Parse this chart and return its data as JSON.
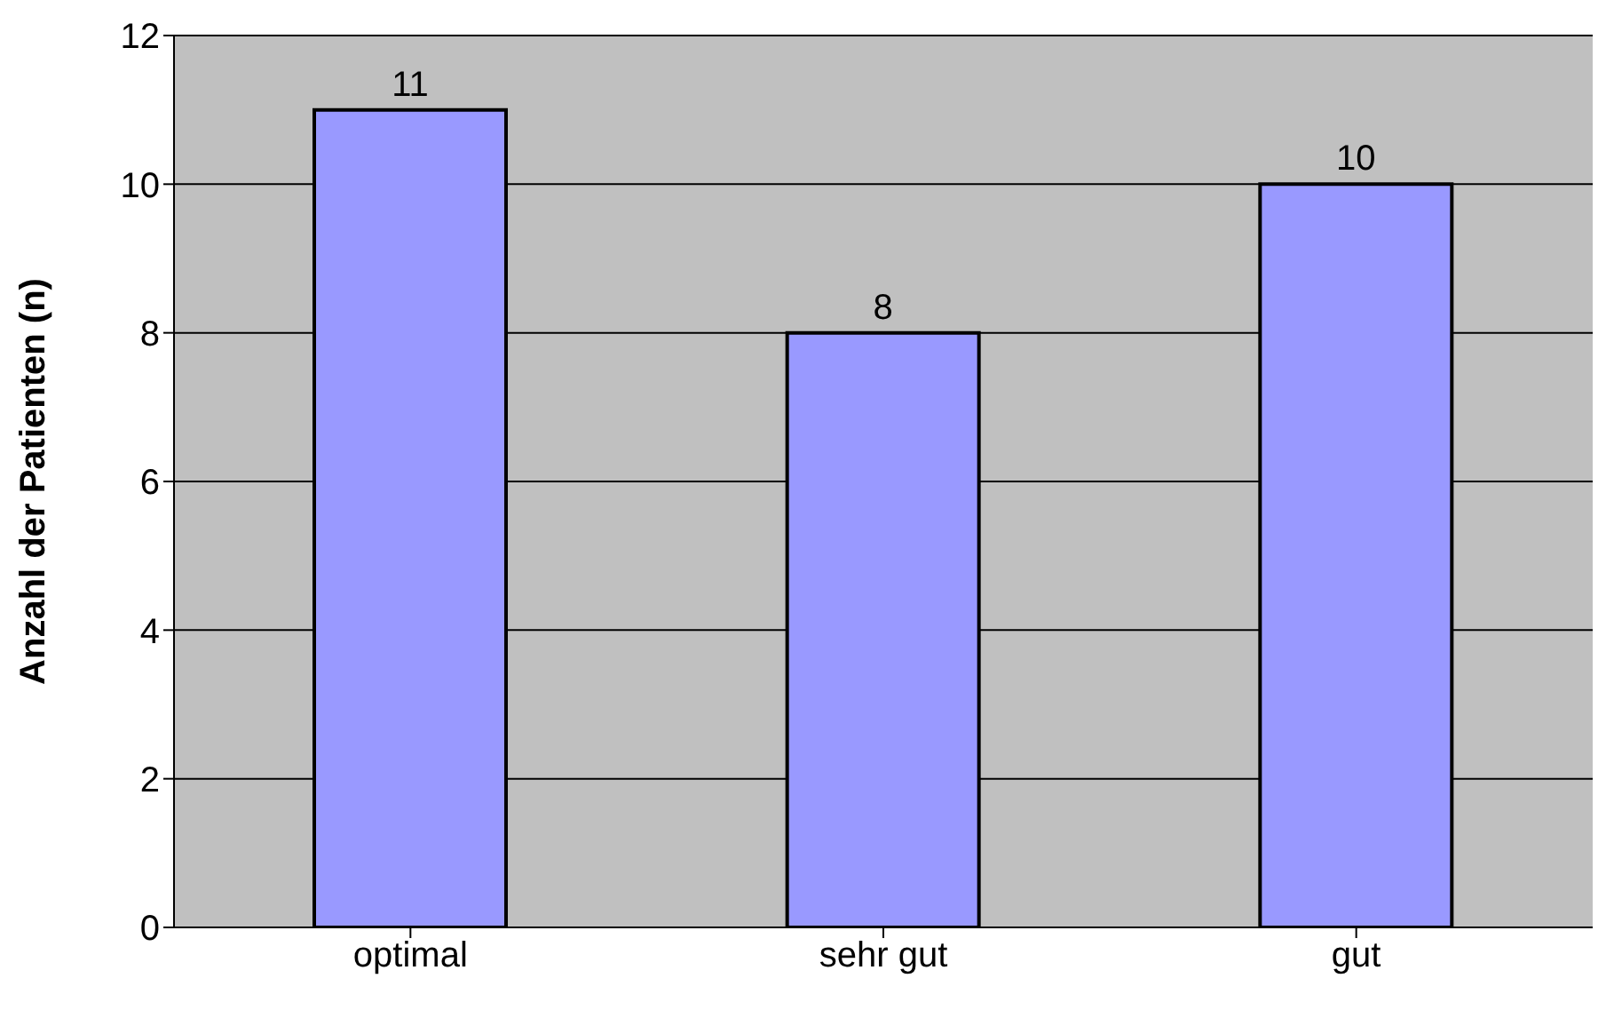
{
  "chart_data": {
    "type": "bar",
    "ylabel": "Anzahl der Patienten (n)",
    "categories": [
      "optimal",
      "sehr gut",
      "gut"
    ],
    "values": [
      11,
      8,
      10
    ],
    "color": "#9999ff",
    "ylim": [
      0,
      12
    ],
    "yticks": [
      0,
      2,
      4,
      6,
      8,
      10,
      12
    ],
    "grid": "y",
    "data_labels": true
  }
}
